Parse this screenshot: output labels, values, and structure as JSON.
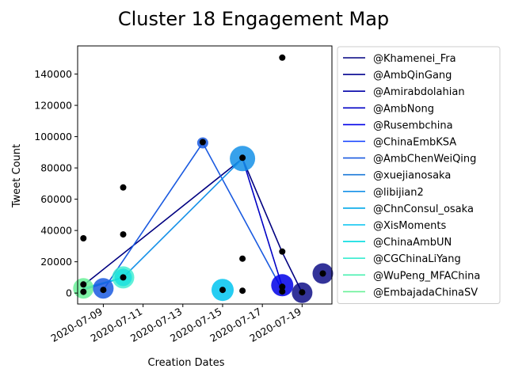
{
  "chart_data": {
    "type": "scatter",
    "title": "Cluster 18 Engagement Map",
    "xlabel": "Creation Dates",
    "ylabel": "Tweet Count",
    "x_tick_labels": [
      "2020-07-09",
      "2020-07-11",
      "2020-07-13",
      "2020-07-15",
      "2020-07-17",
      "2020-07-19"
    ],
    "x_tick_dates": [
      "2020-07-09",
      "2020-07-11",
      "2020-07-13",
      "2020-07-15",
      "2020-07-17",
      "2020-07-19"
    ],
    "xlim": [
      "2020-07-07T17:00",
      "2020-07-20T12:00"
    ],
    "y_tick_labels": [
      "0",
      "20000",
      "40000",
      "60000",
      "80000",
      "100000",
      "120000",
      "140000"
    ],
    "y_tick_values": [
      0,
      20000,
      40000,
      60000,
      80000,
      100000,
      120000,
      140000
    ],
    "ylim": [
      -7000,
      158000
    ],
    "grid": false,
    "legend_position": "outside right",
    "legend": [
      {
        "name": "@Khamenei_Fra",
        "color": "#000080"
      },
      {
        "name": "@AmbQinGang",
        "color": "#00008f"
      },
      {
        "name": "@Amirabdolahian",
        "color": "#0000a8"
      },
      {
        "name": "@AmbNong",
        "color": "#0000c4"
      },
      {
        "name": "@Rusembchina",
        "color": "#0000e8"
      },
      {
        "name": "@ChinaEmbKSA",
        "color": "#0c3cff"
      },
      {
        "name": "@AmbChenWeiQing",
        "color": "#1a5ae0"
      },
      {
        "name": "@xuejianosaka",
        "color": "#1a78d8"
      },
      {
        "name": "@libijian2",
        "color": "#1490e8"
      },
      {
        "name": "@ChnConsul_osaka",
        "color": "#00a8e8"
      },
      {
        "name": "@XisMoments",
        "color": "#00c4f0"
      },
      {
        "name": "@ChinaAmbUN",
        "color": "#00dce0"
      },
      {
        "name": "@CGChinaLiYang",
        "color": "#38ecd0"
      },
      {
        "name": "@WuPeng_MFAChina",
        "color": "#48f0b0"
      },
      {
        "name": "@EmbajadaChinaSV",
        "color": "#68f098"
      }
    ],
    "lines": [
      {
        "color": "#000080",
        "points": [
          [
            "2020-07-08",
            5000
          ],
          [
            "2020-07-16",
            86000
          ],
          [
            "2020-07-18",
            26000
          ],
          [
            "2020-07-19",
            200
          ]
        ]
      },
      {
        "color": "#0000c4",
        "points": [
          [
            "2020-07-16",
            86000
          ],
          [
            "2020-07-18",
            4000
          ]
        ]
      },
      {
        "color": "#1a5ae0",
        "points": [
          [
            "2020-07-09",
            2000
          ],
          [
            "2020-07-14",
            96000
          ],
          [
            "2020-07-18",
            2000
          ]
        ]
      },
      {
        "color": "#1490e8",
        "points": [
          [
            "2020-07-08",
            2000
          ],
          [
            "2020-07-10",
            10000
          ],
          [
            "2020-07-16",
            86000
          ]
        ]
      },
      {
        "color": "#00c4f0",
        "points": [
          [
            "2020-07-08",
            3000
          ],
          [
            "2020-07-10",
            10000
          ]
        ]
      }
    ],
    "bubbles": [
      {
        "x": "2020-07-08",
        "y": 3000,
        "size": 13,
        "color": "#68f098",
        "alpha": 0.85
      },
      {
        "x": "2020-07-09",
        "y": 3000,
        "size": 13,
        "color": "#1a5ae0",
        "alpha": 0.85
      },
      {
        "x": "2020-07-10",
        "y": 10000,
        "size": 14,
        "color": "#38ecd0",
        "alpha": 0.8
      },
      {
        "x": "2020-07-10",
        "y": 10000,
        "size": 11,
        "color": "#00dce0",
        "alpha": 0.6
      },
      {
        "x": "2020-07-14",
        "y": 96000,
        "size": 7,
        "color": "#1a5ae0",
        "alpha": 0.85
      },
      {
        "x": "2020-07-15",
        "y": 2000,
        "size": 14,
        "color": "#00c4f0",
        "alpha": 0.85
      },
      {
        "x": "2020-07-16",
        "y": 86000,
        "size": 16,
        "color": "#1490e8",
        "alpha": 0.85
      },
      {
        "x": "2020-07-18",
        "y": 5000,
        "size": 14,
        "color": "#0000e8",
        "alpha": 0.85
      },
      {
        "x": "2020-07-19",
        "y": 200,
        "size": 13,
        "color": "#000080",
        "alpha": 0.8
      },
      {
        "x": "2020-07-20T01:00",
        "y": 12500,
        "size": 13,
        "color": "#000080",
        "alpha": 0.8
      }
    ],
    "points": [
      {
        "x": "2020-07-08",
        "y": 35000
      },
      {
        "x": "2020-07-08",
        "y": 5500
      },
      {
        "x": "2020-07-08",
        "y": 800
      },
      {
        "x": "2020-07-09",
        "y": 2000
      },
      {
        "x": "2020-07-10",
        "y": 67500
      },
      {
        "x": "2020-07-10",
        "y": 37500
      },
      {
        "x": "2020-07-10",
        "y": 10000
      },
      {
        "x": "2020-07-14",
        "y": 96500
      },
      {
        "x": "2020-07-15",
        "y": 2000
      },
      {
        "x": "2020-07-16",
        "y": 86500
      },
      {
        "x": "2020-07-16",
        "y": 22000
      },
      {
        "x": "2020-07-16",
        "y": 1500
      },
      {
        "x": "2020-07-18",
        "y": 150500
      },
      {
        "x": "2020-07-18",
        "y": 26500
      },
      {
        "x": "2020-07-18",
        "y": 4000
      },
      {
        "x": "2020-07-18",
        "y": 1000
      },
      {
        "x": "2020-07-19",
        "y": 500
      },
      {
        "x": "2020-07-20T01:00",
        "y": 12500
      }
    ]
  }
}
